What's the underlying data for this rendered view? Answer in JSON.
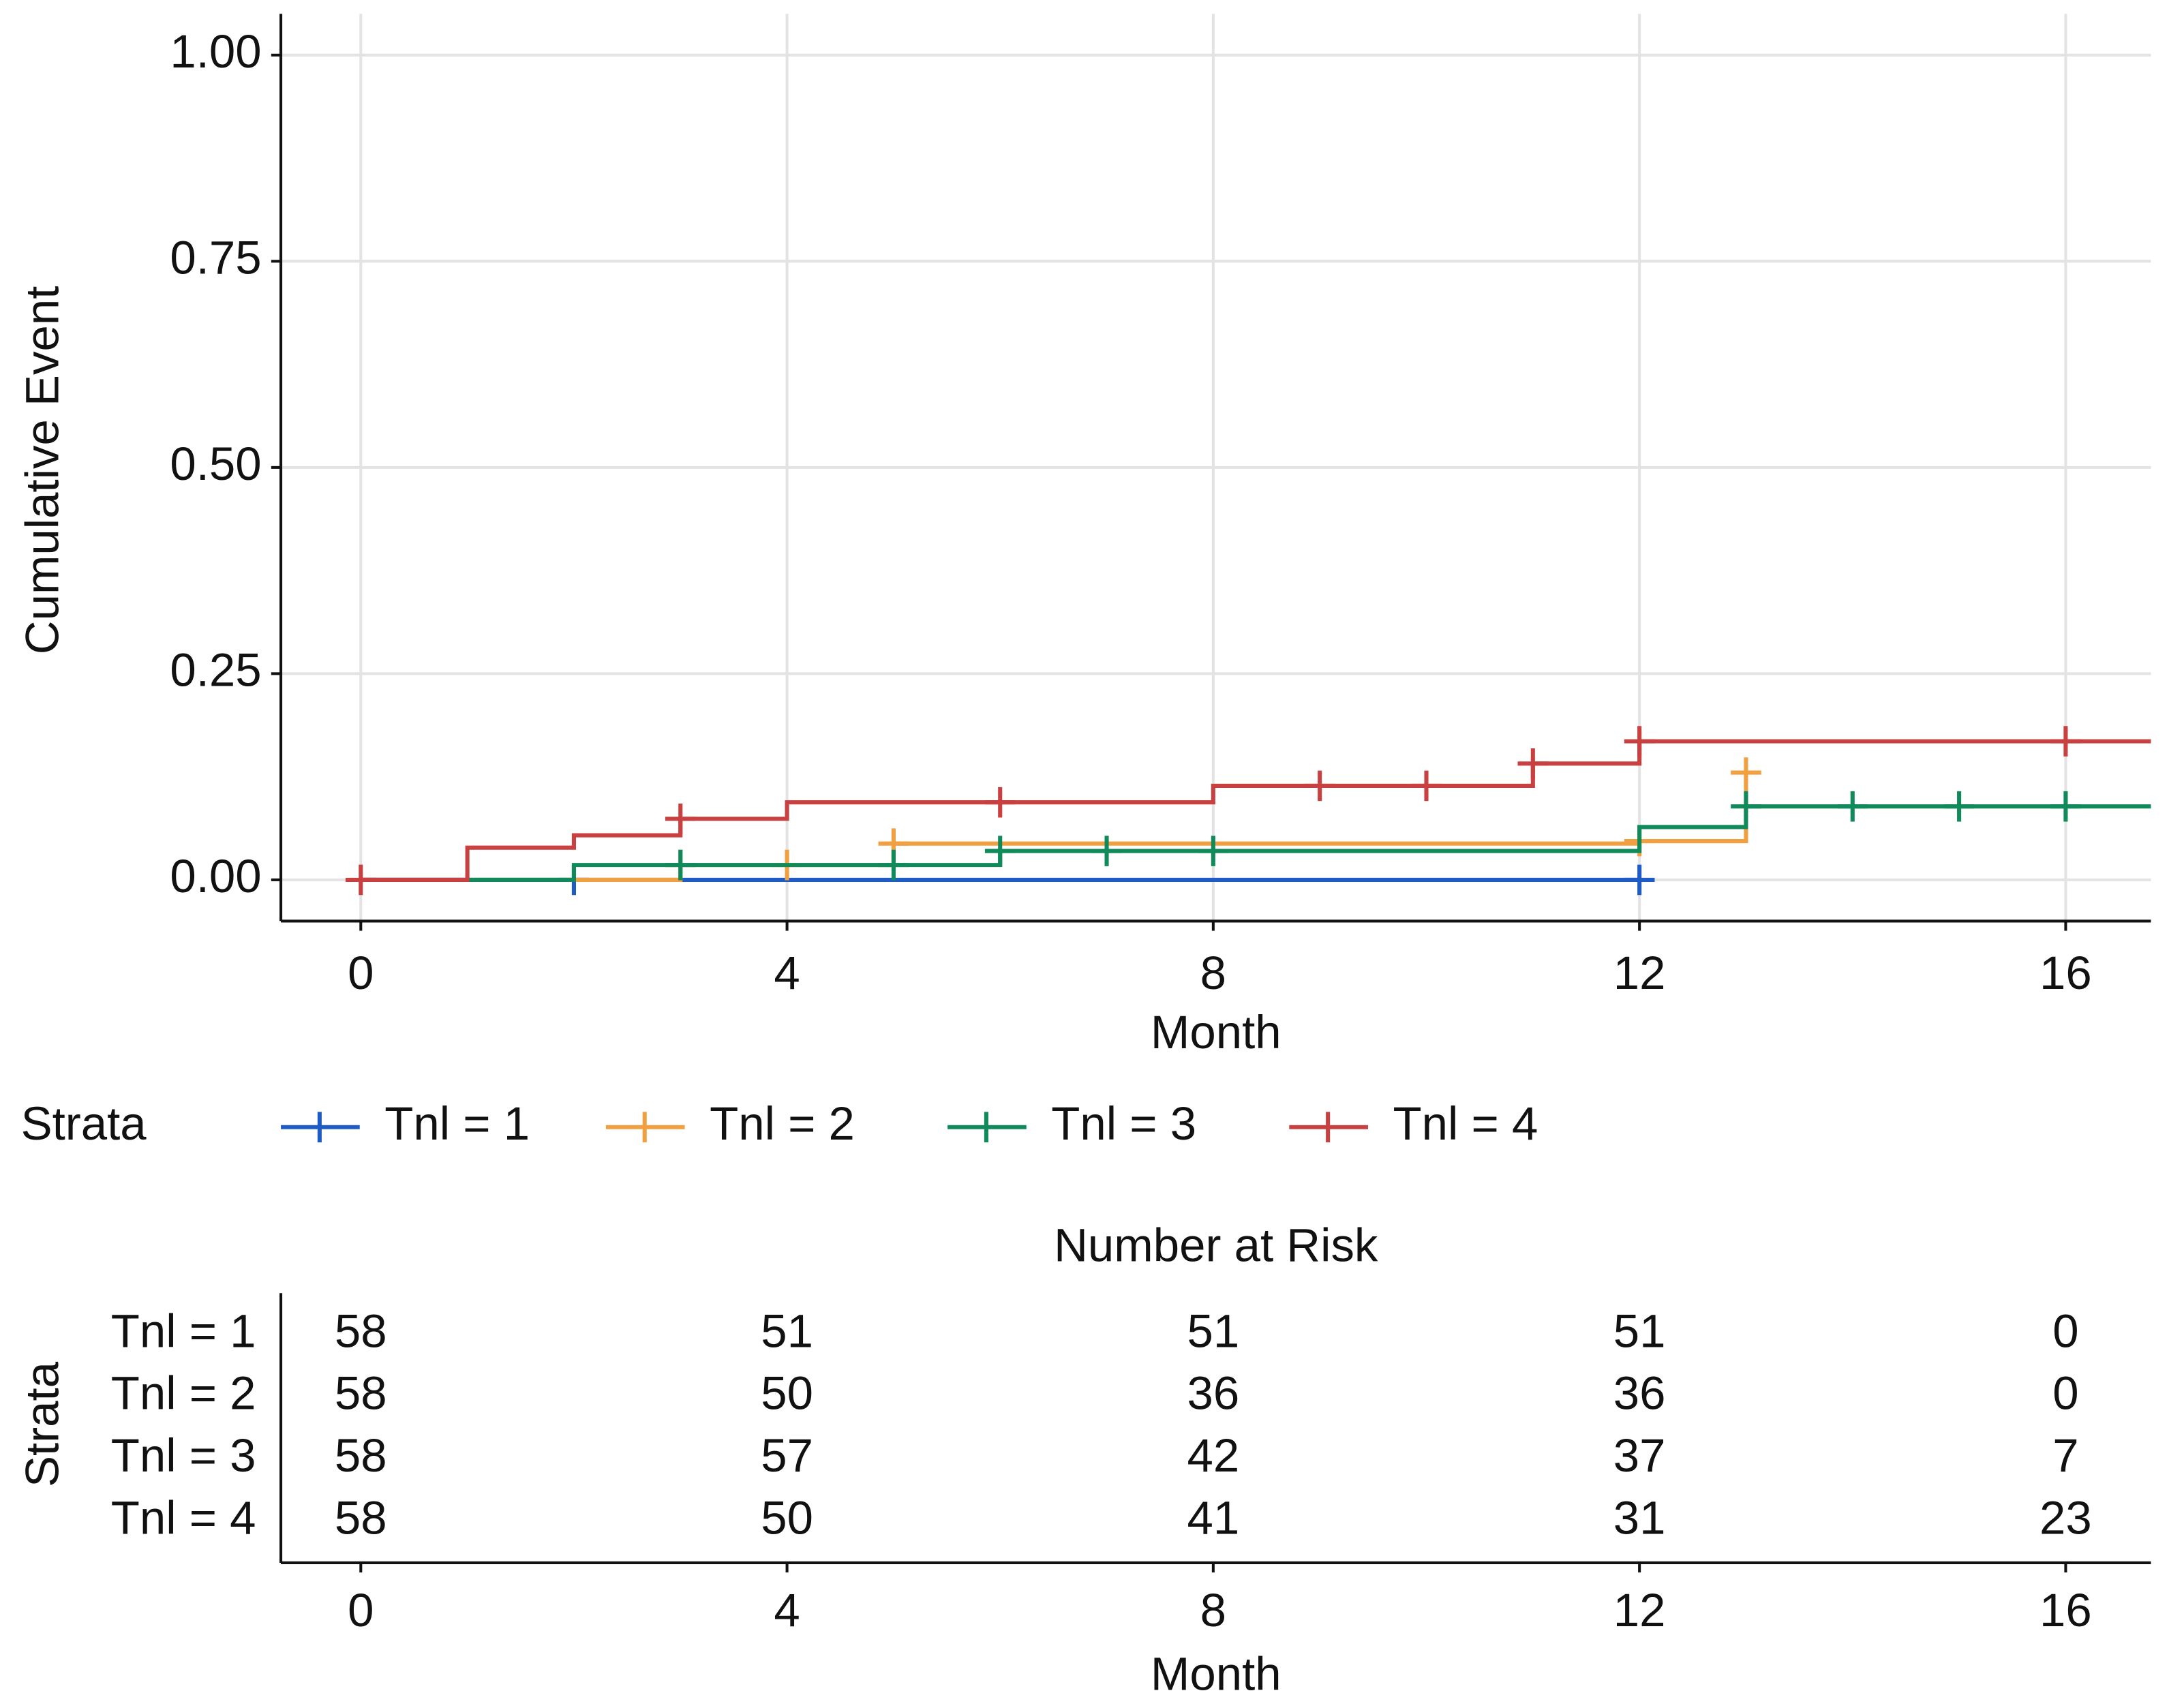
{
  "chart_data": [
    {
      "type": "step",
      "ylabel": "Cumulative Event",
      "xlabel": "Month",
      "xlim": [
        -0.75,
        16.8
      ],
      "ylim": [
        -0.05,
        1.05
      ],
      "xticks": [
        0,
        4,
        8,
        12,
        16
      ],
      "yticks": [
        {
          "value": 0,
          "label": "0.00"
        },
        {
          "value": 0.25,
          "label": "0.25"
        },
        {
          "value": 0.5,
          "label": "0.50"
        },
        {
          "value": 0.75,
          "label": "0.75"
        },
        {
          "value": 1,
          "label": "1.00"
        }
      ],
      "grid": true,
      "legend_title": "Strata",
      "legend_position": "bottom",
      "series": [
        {
          "name": "Tnl = 1",
          "color": "#1f5bc4",
          "x": [
            0,
            12
          ],
          "values": [
            0,
            0
          ],
          "censor_x": [
            2,
            12
          ],
          "censor_values": [
            0,
            0
          ]
        },
        {
          "name": "Tnl = 2",
          "color": "#f0a040",
          "x": [
            0,
            3,
            5,
            12,
            13
          ],
          "values": [
            0,
            0.018,
            0.044,
            0.047,
            0.13
          ],
          "censor_x": [
            3,
            4,
            5,
            12,
            13
          ],
          "censor_values": [
            0.018,
            0.018,
            0.044,
            0.047,
            0.13
          ]
        },
        {
          "name": "Tnl = 3",
          "color": "#108a5a",
          "x": [
            0,
            2,
            6,
            12,
            13,
            16.8
          ],
          "values": [
            0,
            0.018,
            0.035,
            0.064,
            0.089,
            0.089
          ],
          "censor_x": [
            3,
            5,
            6,
            7,
            8,
            13,
            14,
            15,
            16
          ],
          "censor_values": [
            0.018,
            0.018,
            0.035,
            0.035,
            0.035,
            0.089,
            0.089,
            0.089,
            0.089
          ]
        },
        {
          "name": "Tnl = 4",
          "color": "#c84040",
          "x": [
            0,
            1,
            2,
            3,
            4,
            8,
            11,
            12,
            16.8
          ],
          "values": [
            0,
            0.039,
            0.054,
            0.074,
            0.094,
            0.114,
            0.141,
            0.168,
            0.168
          ],
          "censor_x": [
            0,
            3,
            6,
            9,
            10,
            11,
            12,
            16
          ],
          "censor_values": [
            0,
            0.074,
            0.094,
            0.114,
            0.114,
            0.141,
            0.168,
            0.168
          ]
        }
      ]
    },
    {
      "type": "table",
      "title": "Number at Risk",
      "xlabel": "Month",
      "ylabel": "Strata",
      "xlim": [
        -0.75,
        16.8
      ],
      "xticks": [
        0,
        4,
        8,
        12,
        16
      ],
      "x": [
        0,
        4,
        8,
        12,
        16
      ],
      "rows": [
        {
          "name": "Tnl = 1",
          "values": [
            58,
            51,
            51,
            51,
            0
          ]
        },
        {
          "name": "Tnl = 2",
          "values": [
            58,
            50,
            36,
            36,
            0
          ]
        },
        {
          "name": "Tnl = 3",
          "values": [
            58,
            57,
            42,
            37,
            7
          ]
        },
        {
          "name": "Tnl = 4",
          "values": [
            58,
            50,
            41,
            31,
            23
          ]
        }
      ]
    }
  ]
}
